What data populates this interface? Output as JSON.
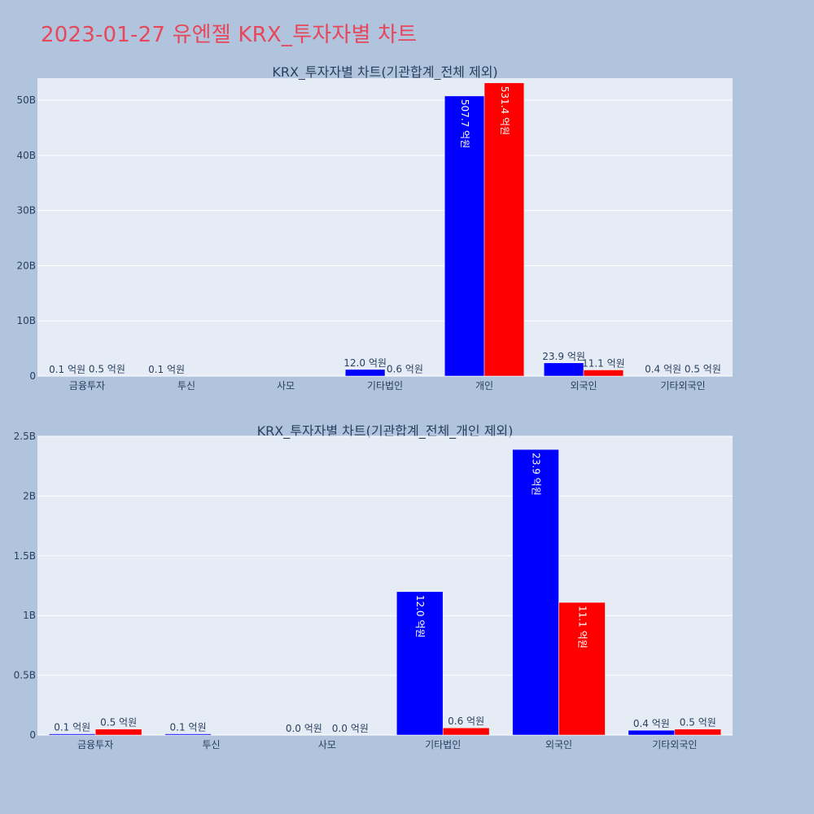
{
  "page": {
    "title": "2023-01-27 유엔젤 KRX_투자자별 차트"
  },
  "colors": {
    "background": "#b0c4de",
    "plot_background": "#e5ecf6",
    "title": "#e8465a",
    "series_1": "#0000ff",
    "series_2": "#ff0000"
  },
  "chart_data": [
    {
      "type": "bar",
      "title": "KRX_투자자별 차트(기관합계_전체 제외)",
      "categories": [
        "금융투자",
        "투신",
        "사모",
        "기타법인",
        "개인",
        "외국인",
        "기타외국인"
      ],
      "y_ticks": [
        0,
        10,
        20,
        30,
        40,
        50
      ],
      "y_tick_labels": [
        "0",
        "10B",
        "20B",
        "30B",
        "40B",
        "50B"
      ],
      "ylim": [
        0,
        54
      ],
      "unit_note": "values in billions",
      "series": [
        {
          "values": [
            0.01,
            0.01,
            0,
            1.2,
            50.77,
            2.39,
            0.04
          ],
          "labels": [
            "0.1 억원",
            "0.1 억원",
            "",
            "12.0 억원",
            "507.7 억원",
            "23.9 억원",
            "0.4 억원"
          ]
        },
        {
          "values": [
            0.05,
            0,
            0,
            0.06,
            53.14,
            1.11,
            0.05
          ],
          "labels": [
            "0.5 억원",
            "",
            "",
            "0.6 억원",
            "531.4 억원",
            "11.1 억원",
            "0.5 억원"
          ]
        }
      ],
      "grid": true
    },
    {
      "type": "bar",
      "title": "KRX_투자자별 차트(기관합계_전체_개인 제외)",
      "categories": [
        "금융투자",
        "투신",
        "사모",
        "기타법인",
        "외국인",
        "기타외국인"
      ],
      "y_ticks": [
        0,
        0.5,
        1,
        1.5,
        2,
        2.5
      ],
      "y_tick_labels": [
        "0",
        "0.5B",
        "1B",
        "1.5B",
        "2B",
        "2.5B"
      ],
      "ylim": [
        0,
        2.5
      ],
      "unit_note": "values in billions",
      "series": [
        {
          "values": [
            0.01,
            0.01,
            0,
            1.2,
            2.39,
            0.04
          ],
          "labels": [
            "0.1 억원",
            "0.1 억원",
            "0.0 억원",
            "12.0 억원",
            "23.9 억원",
            "0.4 억원"
          ]
        },
        {
          "values": [
            0.05,
            0,
            0,
            0.06,
            1.11,
            0.05
          ],
          "labels": [
            "0.5 억원",
            "",
            "0.0 억원",
            "0.6 억원",
            "11.1 억원",
            "0.5 억원"
          ]
        }
      ],
      "grid": true
    }
  ]
}
